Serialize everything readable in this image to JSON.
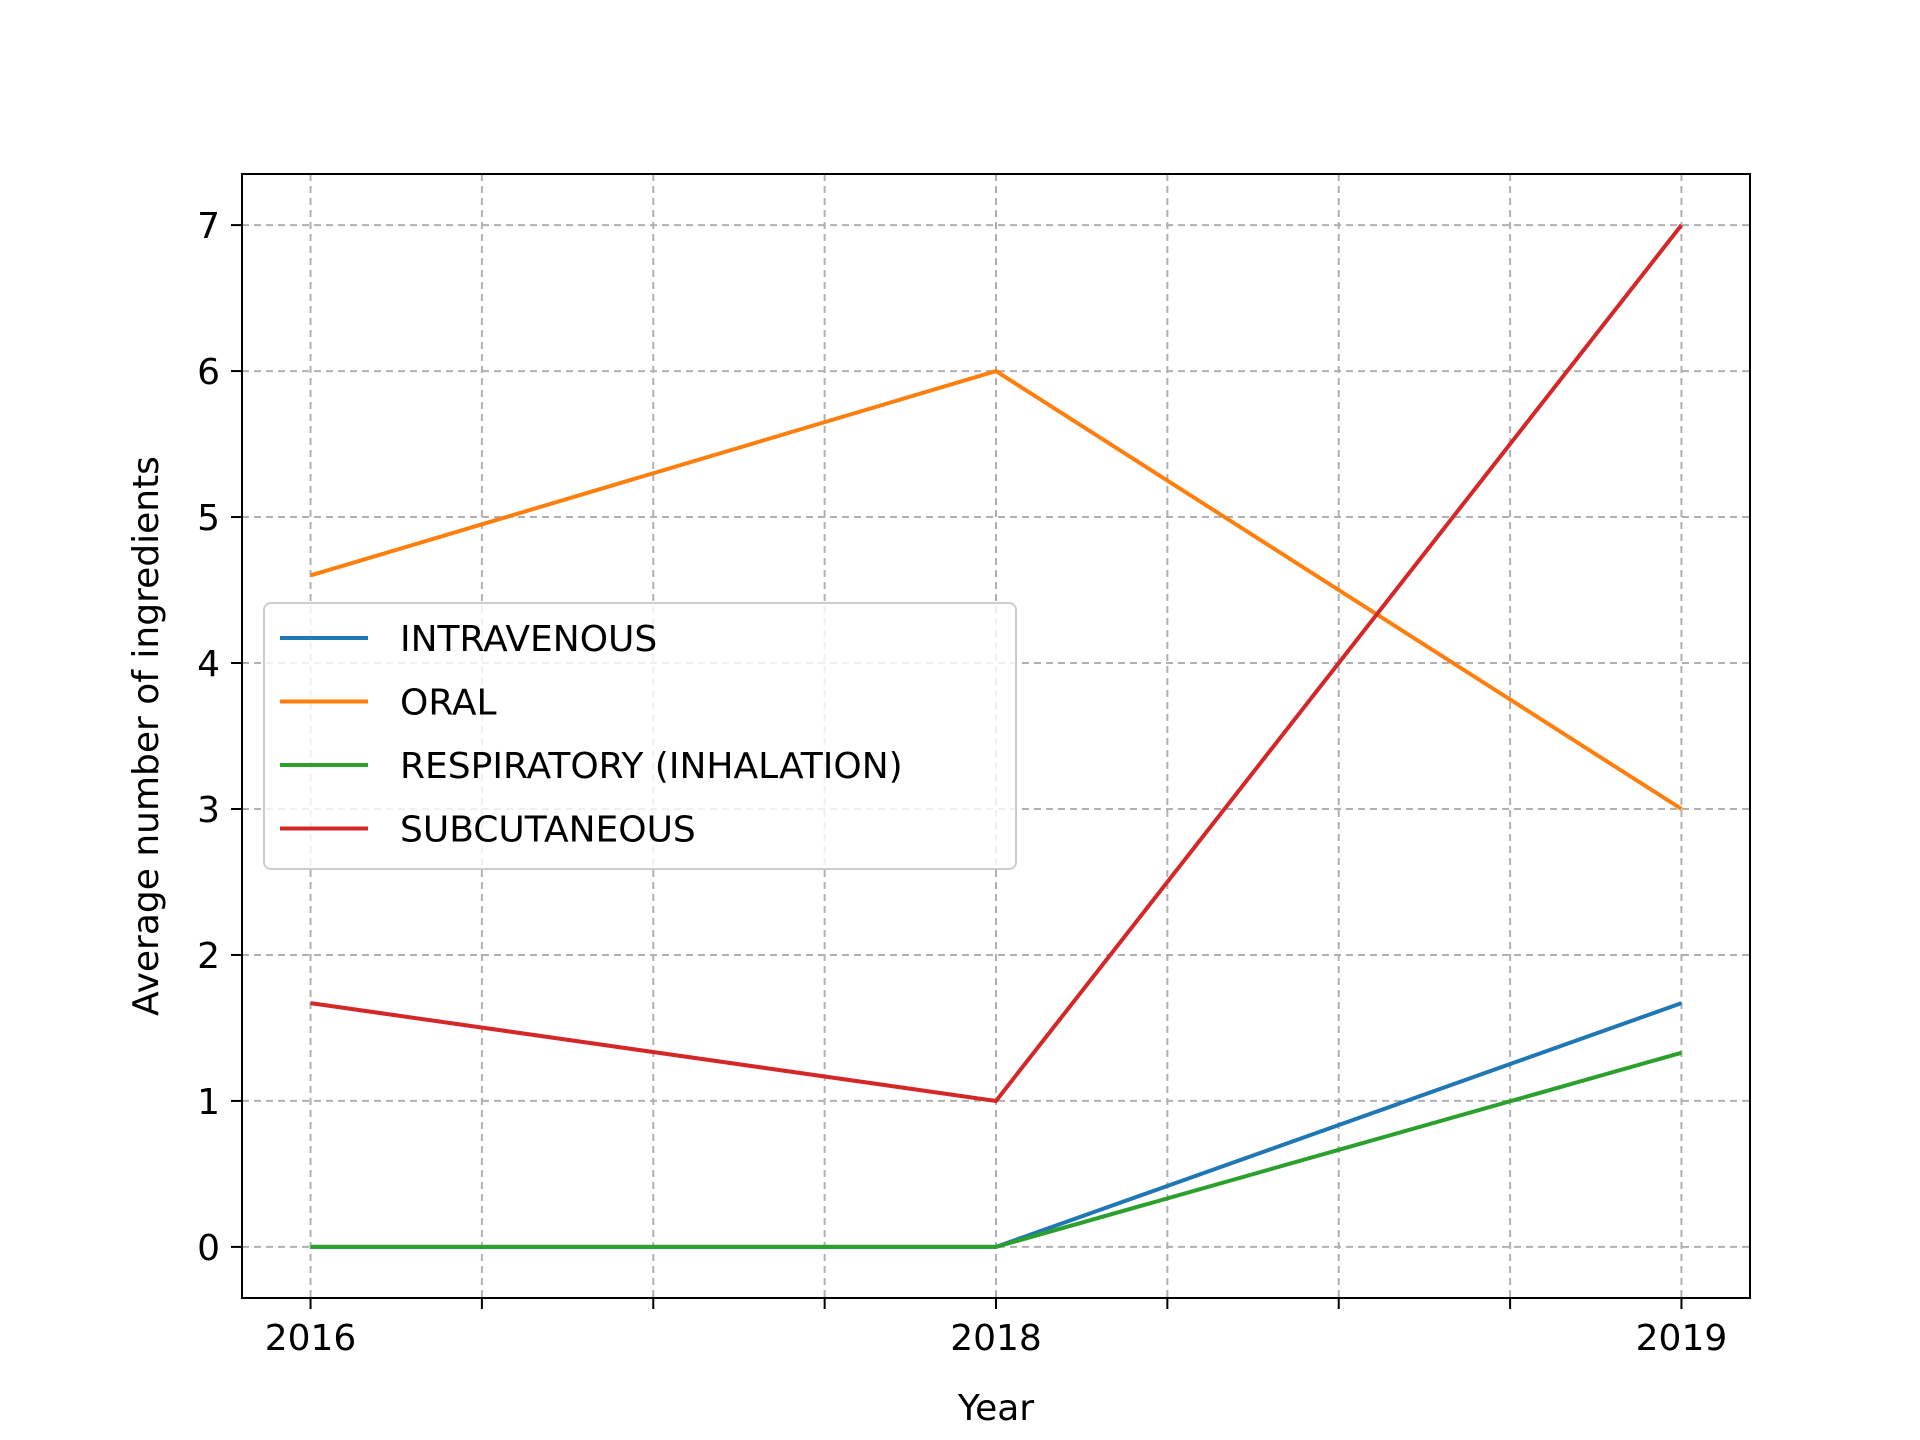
{
  "chart_data": {
    "type": "line",
    "title": "",
    "xlabel": "Year",
    "ylabel": "Average number of ingredients",
    "x": [
      0,
      2,
      4
    ],
    "x_tick_labels": [
      "2016",
      "2018",
      "2019"
    ],
    "x_tick_labels_shown_at": [
      0,
      2,
      4
    ],
    "xlim": [
      -0.2,
      4.2
    ],
    "ylim": [
      -0.35,
      7.35
    ],
    "y_ticks": [
      0,
      1,
      2,
      3,
      4,
      5,
      6,
      7
    ],
    "grid": true,
    "legend_position": "center-left",
    "series": [
      {
        "name": "INTRAVENOUS",
        "color": "#1f77b4",
        "values": [
          0,
          0,
          1.67
        ]
      },
      {
        "name": "ORAL",
        "color": "#ff7f0e",
        "values": [
          4.6,
          6,
          3
        ]
      },
      {
        "name": "RESPIRATORY (INHALATION)",
        "color": "#2ca02c",
        "values": [
          0,
          0,
          1.33
        ]
      },
      {
        "name": "SUBCUTANEOUS",
        "color": "#d62728",
        "values": [
          1.67,
          1,
          7
        ]
      }
    ]
  }
}
